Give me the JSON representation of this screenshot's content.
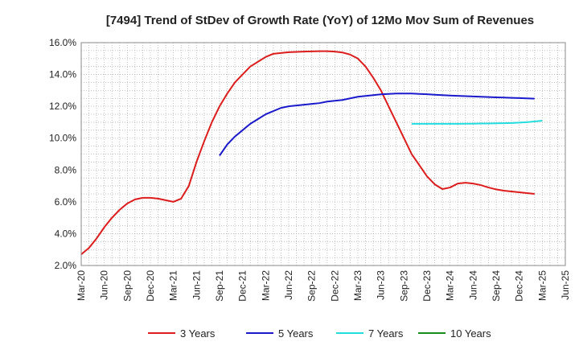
{
  "chart_data": {
    "type": "line",
    "title": "[7494]  Trend of StDev of Growth Rate (YoY) of 12Mo Mov Sum of Revenues",
    "xlabel": "",
    "ylabel": "",
    "ylim": [
      2.0,
      16.0
    ],
    "yticks": [
      "2.0%",
      "4.0%",
      "6.0%",
      "8.0%",
      "10.0%",
      "12.0%",
      "14.0%",
      "16.0%"
    ],
    "ytick_values": [
      2,
      4,
      6,
      8,
      10,
      12,
      14,
      16
    ],
    "xticks": [
      "Mar-20",
      "Jun-20",
      "Sep-20",
      "Dec-20",
      "Mar-21",
      "Jun-21",
      "Sep-21",
      "Dec-21",
      "Mar-22",
      "Jun-22",
      "Sep-22",
      "Dec-22",
      "Mar-23",
      "Jun-23",
      "Sep-23",
      "Dec-23",
      "Mar-24",
      "Jun-24",
      "Sep-24",
      "Dec-24",
      "Mar-25",
      "Jun-25"
    ],
    "x_months_index_range": [
      0,
      63
    ],
    "grid": true,
    "legend_position": "bottom",
    "series": [
      {
        "name": "3 Years",
        "color": "#dd1c1c",
        "start_index": 0,
        "values": [
          2.7,
          3.1,
          3.7,
          4.4,
          5.0,
          5.5,
          5.9,
          6.15,
          6.25,
          6.25,
          6.2,
          6.1,
          6.0,
          6.2,
          7.0,
          8.5,
          9.8,
          11.0,
          12.0,
          12.8,
          13.5,
          14.0,
          14.5,
          14.8,
          15.1,
          15.3,
          15.35,
          15.4,
          15.42,
          15.44,
          15.45,
          15.46,
          15.46,
          15.44,
          15.38,
          15.25,
          15.0,
          14.5,
          13.8,
          13.0,
          12.0,
          11.0,
          10.0,
          9.0,
          8.3,
          7.6,
          7.1,
          6.8,
          6.9,
          7.15,
          7.2,
          7.15,
          7.05,
          6.9,
          6.78,
          6.7,
          6.65,
          6.6,
          6.55,
          6.5
        ]
      },
      {
        "name": "5 Years",
        "color": "#1a1acc",
        "start_index": 18,
        "values": [
          8.9,
          9.6,
          10.1,
          10.5,
          10.9,
          11.2,
          11.5,
          11.7,
          11.9,
          12.0,
          12.05,
          12.1,
          12.15,
          12.2,
          12.3,
          12.35,
          12.4,
          12.5,
          12.6,
          12.65,
          12.7,
          12.75,
          12.78,
          12.8,
          12.8,
          12.8,
          12.78,
          12.76,
          12.73,
          12.7,
          12.68,
          12.66,
          12.64,
          12.62,
          12.6,
          12.58,
          12.56,
          12.55,
          12.53,
          12.52,
          12.5,
          12.48
        ]
      },
      {
        "name": "7 Years",
        "color": "#22dddd",
        "start_index": 43,
        "values": [
          10.9,
          10.9,
          10.9,
          10.9,
          10.9,
          10.9,
          10.9,
          10.91,
          10.91,
          10.92,
          10.92,
          10.93,
          10.94,
          10.95,
          10.98,
          11.0,
          11.05,
          11.1
        ]
      },
      {
        "name": "10 Years",
        "color": "#1a8c1a",
        "start_index": 63,
        "values": []
      }
    ]
  }
}
